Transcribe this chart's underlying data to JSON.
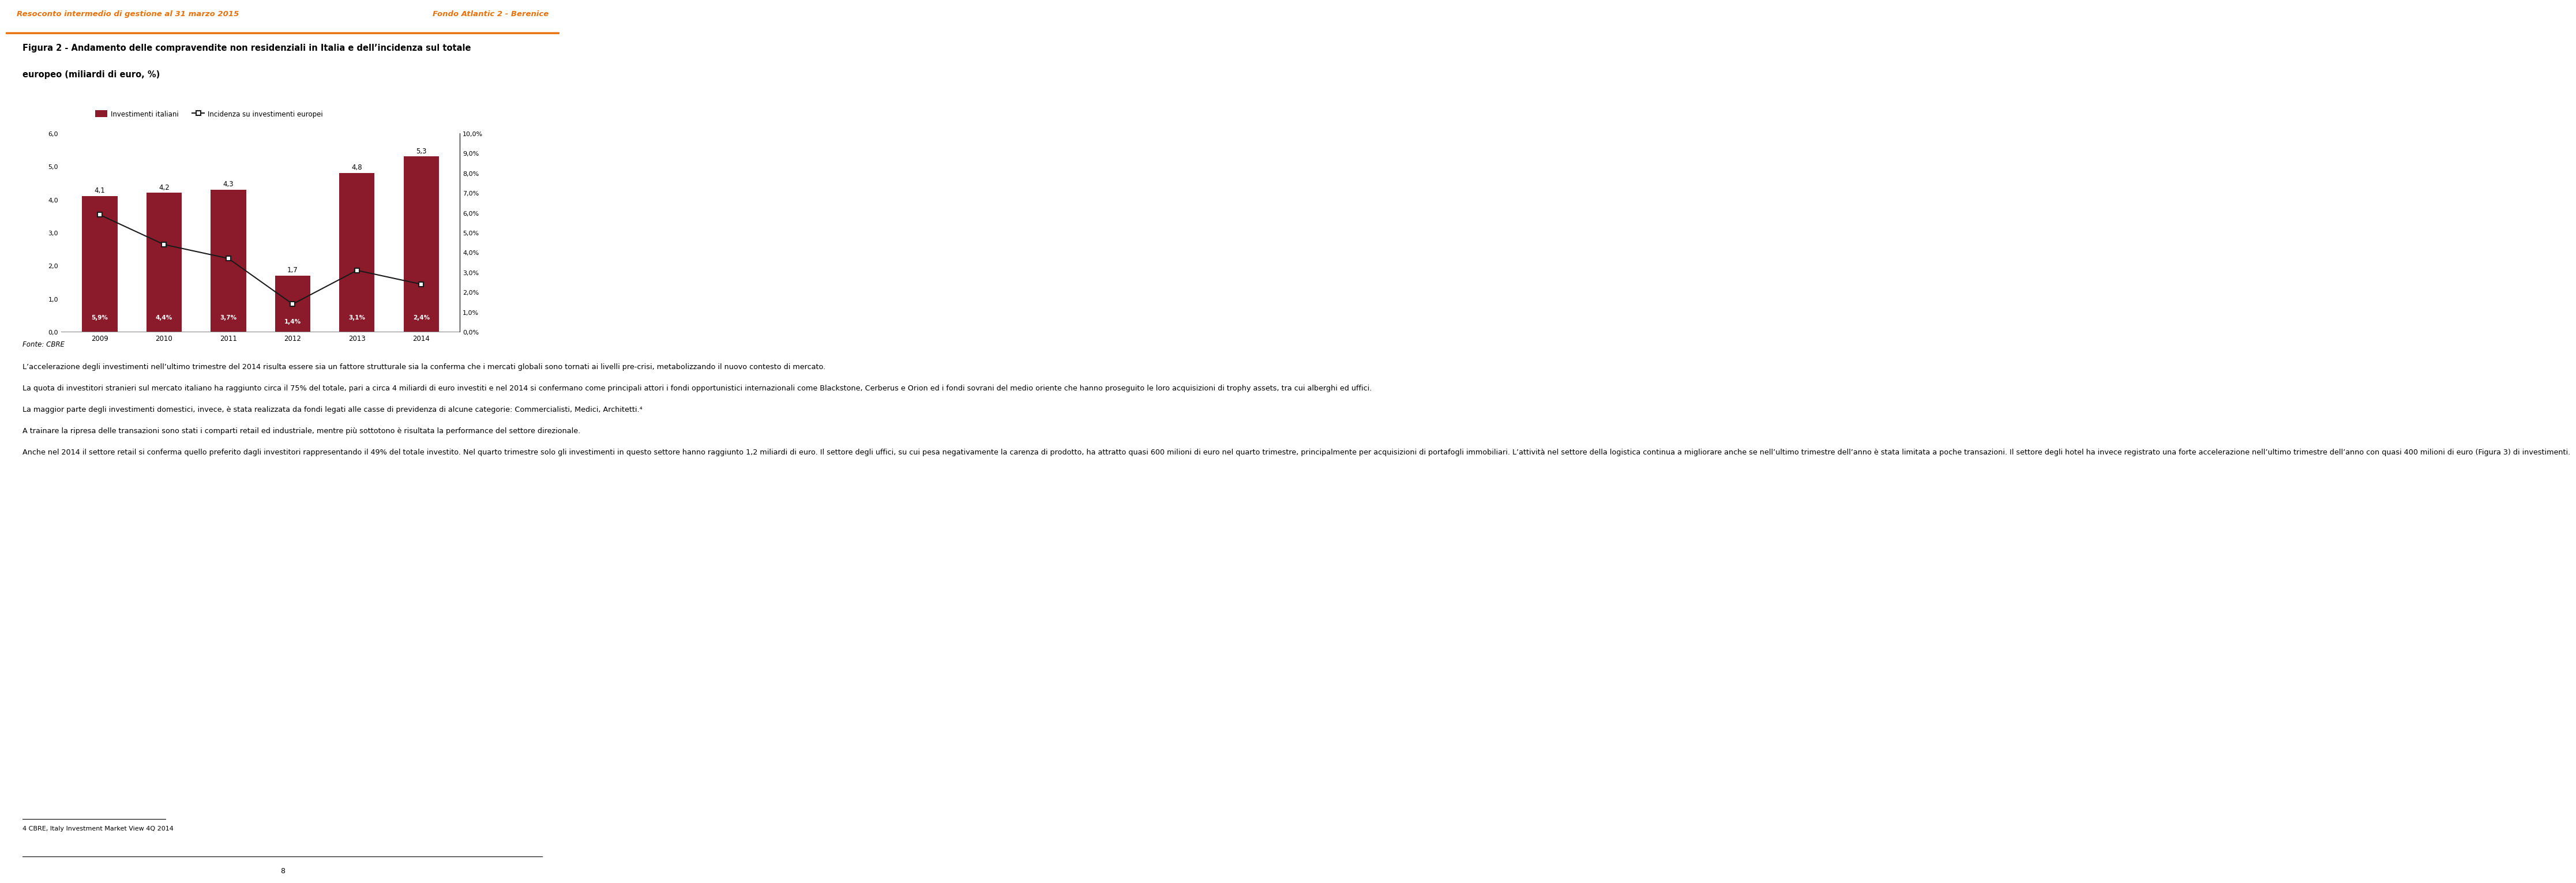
{
  "header_left": "Resoconto intermedio di gestione al 31 marzo 2015",
  "header_right": "Fondo Atlantic 2 - Berenice",
  "header_color": "#E8720C",
  "fig_title_line1": "Figura 2 - Andamento delle compravendite non residenziali in Italia e dell’incidenza sul totale",
  "fig_title_line2": "europeo (miliardi di euro, %)",
  "years": [
    "2009",
    "2010",
    "2011",
    "2012",
    "2013",
    "2014"
  ],
  "bar_values": [
    4.1,
    4.2,
    4.3,
    1.7,
    4.8,
    5.3
  ],
  "bar_labels": [
    "4,1",
    "4,2",
    "4,3",
    "1,7",
    "4,8",
    "5,3"
  ],
  "bar_pct_labels": [
    "5,9%",
    "4,4%",
    "3,7%",
    "1,4%",
    "3,1%",
    "2,4%"
  ],
  "line_values": [
    5.9,
    4.4,
    3.7,
    1.4,
    3.1,
    2.4
  ],
  "bar_color": "#8B1A2A",
  "line_color": "#1A1A1A",
  "left_ylim": [
    0,
    6.0
  ],
  "right_ylim": [
    0,
    10.0
  ],
  "left_yticks": [
    0.0,
    1.0,
    2.0,
    3.0,
    4.0,
    5.0,
    6.0
  ],
  "left_ytick_labels": [
    "0,0",
    "1,0",
    "2,0",
    "3,0",
    "4,0",
    "5,0",
    "6,0"
  ],
  "right_yticks": [
    0.0,
    1.0,
    2.0,
    3.0,
    4.0,
    5.0,
    6.0,
    7.0,
    8.0,
    9.0,
    10.0
  ],
  "right_ytick_labels": [
    "0,0%",
    "1,0%",
    "2,0%",
    "3,0%",
    "4,0%",
    "5,0%",
    "6,0%",
    "7,0%",
    "8,0%",
    "9,0%",
    "10,0%"
  ],
  "legend_bar_label": "Investimenti italiani",
  "legend_line_label": "Incidenza su investimenti europei",
  "fonte": "Fonte: CBRE",
  "page_number": "8",
  "para1": "L’accelerazione degli investimenti nell’ultimo trimestre del 2014 risulta essere sia un fattore strutturale sia la conferma che i mercati globali sono tornati ai livelli pre-crisi, metabolizzando il nuovo contesto di mercato.",
  "para2": "La quota di investitori stranieri sul mercato italiano ha raggiunto circa il 75% del totale, pari a circa 4 miliardi di euro investiti e nel 2014 si confermano come principali attori i fondi opportunistici internazionali come Blackstone, Cerberus e Orion ed i fondi sovrani del medio oriente che hanno proseguito le loro acquisizioni di trophy assets, tra cui alberghi ed uffici.",
  "para3": "La maggior parte degli investimenti domestici, invece, è stata realizzata da fondi legati alle casse di previdenza di alcune categorie: Commercialisti, Medici, Architetti.⁴",
  "para4": "A trainare la ripresa delle transazioni sono stati i comparti retail ed industriale, mentre più sottotono è risultata la performance del settore direzionale.",
  "para5": "Anche nel 2014 il settore retail si conferma quello preferito dagli investitori rappresentando il 49% del totale investito. Nel quarto trimestre solo gli investimenti in questo settore hanno raggiunto 1,2 miliardi di euro. Il settore degli uffici, su cui pesa negativamente la carenza di prodotto, ha attratto quasi 600 milioni di euro nel quarto trimestre, principalmente per acquisizioni di portafogli immobiliari. L’attività nel settore della logistica continua a migliorare anche se nell’ultimo trimestre dell’anno è stata limitata a poche transazioni. Il settore degli hotel ha invece registrato una forte accelerazione nell’ultimo trimestre dell’anno con quasi 400 milioni di euro (Figura 3) di investimenti.",
  "footnote": "4 CBRE, Italy Investment Market View 4Q 2014"
}
